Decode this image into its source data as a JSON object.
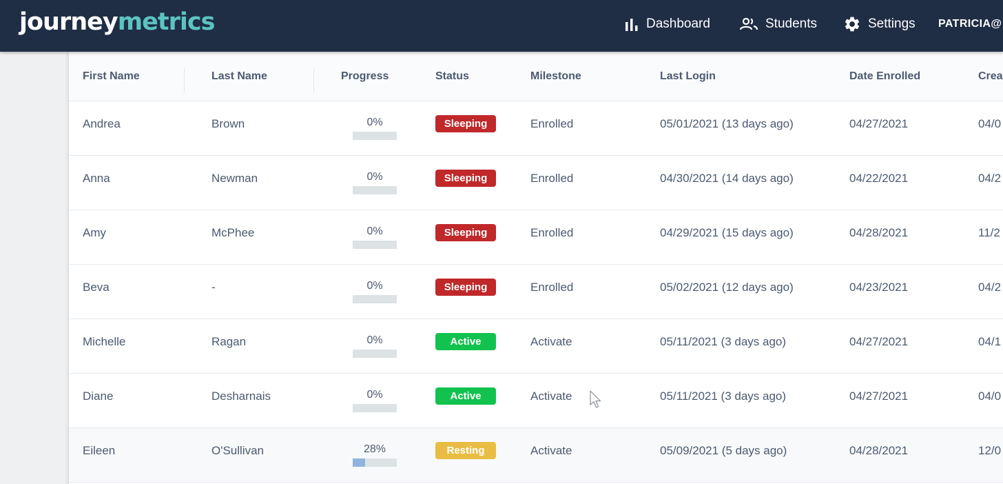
{
  "brand": {
    "part1": "journey",
    "part2": "metrics"
  },
  "nav": {
    "dashboard": "Dashboard",
    "students": "Students",
    "settings": "Settings",
    "user": "PATRICIA@"
  },
  "table": {
    "headers": [
      "First Name",
      "Last Name",
      "Progress",
      "Status",
      "Milestone",
      "Last Login",
      "Date Enrolled",
      "Crea"
    ],
    "rows": [
      {
        "first": "Andrea",
        "last": "Brown",
        "progress_label": "0%",
        "progress": 0,
        "status": "Sleeping",
        "milestone": "Enrolled",
        "last_login": "05/01/2021 (13 days ago)",
        "enrolled": "04/27/2021",
        "created": "04/0"
      },
      {
        "first": "Anna",
        "last": "Newman",
        "progress_label": "0%",
        "progress": 0,
        "status": "Sleeping",
        "milestone": "Enrolled",
        "last_login": "04/30/2021 (14 days ago)",
        "enrolled": "04/22/2021",
        "created": "04/2"
      },
      {
        "first": "Amy",
        "last": "McPhee",
        "progress_label": "0%",
        "progress": 0,
        "status": "Sleeping",
        "milestone": "Enrolled",
        "last_login": "04/29/2021 (15 days ago)",
        "enrolled": "04/28/2021",
        "created": "11/2"
      },
      {
        "first": "Beva",
        "last": "-",
        "progress_label": "0%",
        "progress": 0,
        "status": "Sleeping",
        "milestone": "Enrolled",
        "last_login": "05/02/2021 (12 days ago)",
        "enrolled": "04/23/2021",
        "created": "04/2"
      },
      {
        "first": "Michelle",
        "last": "Ragan",
        "progress_label": "0%",
        "progress": 0,
        "status": "Active",
        "milestone": "Activate",
        "last_login": "05/11/2021 (3 days ago)",
        "enrolled": "04/27/2021",
        "created": "04/1"
      },
      {
        "first": "Diane",
        "last": "Desharnais",
        "progress_label": "0%",
        "progress": 0,
        "status": "Active",
        "milestone": "Activate",
        "last_login": "05/11/2021 (3 days ago)",
        "enrolled": "04/27/2021",
        "created": "04/0"
      },
      {
        "first": "Eileen",
        "last": "O'Sullivan",
        "progress_label": "28%",
        "progress": 28,
        "status": "Resting",
        "milestone": "Activate",
        "last_login": "05/09/2021 (5 days ago)",
        "enrolled": "04/28/2021",
        "created": "12/0"
      }
    ]
  },
  "colors": {
    "topbar": "#1f2d45",
    "brand_accent": "#5cc3c0",
    "sleeping": "#c0282a",
    "active": "#12c24e",
    "resting": "#e9bd44",
    "progress_fill": "#8fb4de"
  },
  "icons": {
    "dashboard": "bar-chart-icon",
    "students": "people-icon",
    "settings": "gear-icon",
    "cursor": "mouse-pointer-icon"
  }
}
